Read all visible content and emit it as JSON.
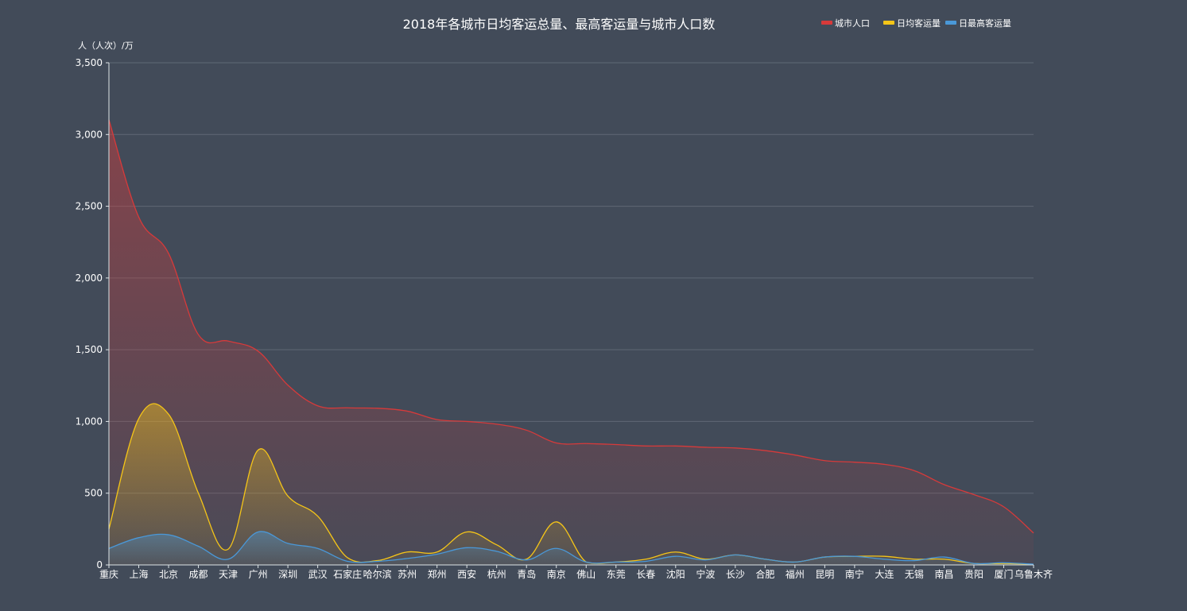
{
  "chart_data": {
    "type": "area",
    "title": "2018年各城市日均客运总量、最高客运量与城市人口数",
    "xlabel": "",
    "ylabel": "人（人次）/万",
    "ylim": [
      0,
      3500
    ],
    "yticks": [
      0,
      500,
      1000,
      1500,
      2000,
      2500,
      3000,
      3500
    ],
    "ytick_labels": [
      "0",
      "500",
      "1,000",
      "1,500",
      "2,000",
      "2,500",
      "3,000",
      "3,500"
    ],
    "grid": true,
    "legend_position": "top-right",
    "categories": [
      "重庆",
      "上海",
      "北京",
      "成都",
      "天津",
      "广州",
      "深圳",
      "武汉",
      "石家庄",
      "哈尔滨",
      "苏州",
      "郑州",
      "西安",
      "杭州",
      "青岛",
      "南京",
      "佛山",
      "东莞",
      "长春",
      "沈阳",
      "宁波",
      "长沙",
      "合肥",
      "福州",
      "昆明",
      "南宁",
      "大连",
      "无锡",
      "南昌",
      "贵阳",
      "厦门",
      "乌鲁木齐"
    ],
    "series": [
      {
        "name": "城市人口",
        "color": "#d73a3a",
        "values": [
          3102,
          2424,
          2171,
          1605,
          1560,
          1490,
          1253,
          1109,
          1095,
          1092,
          1072,
          1013,
          1000,
          981,
          939,
          850,
          846,
          839,
          829,
          829,
          820,
          815,
          797,
          766,
          727,
          716,
          701,
          657,
          560,
          490,
          405,
          222
        ]
      },
      {
        "name": "日均客运量",
        "color": "#f5c518",
        "values": [
          250,
          1020,
          1050,
          500,
          110,
          800,
          480,
          340,
          50,
          30,
          90,
          90,
          230,
          140,
          40,
          300,
          20,
          20,
          40,
          90,
          40,
          70,
          40,
          20,
          55,
          60,
          60,
          40,
          40,
          10,
          10,
          5
        ]
      },
      {
        "name": "日最高客运量",
        "color": "#4a98d8",
        "values": [
          115,
          190,
          210,
          130,
          40,
          230,
          150,
          115,
          25,
          25,
          45,
          75,
          120,
          95,
          35,
          115,
          20,
          20,
          25,
          60,
          35,
          70,
          40,
          20,
          55,
          60,
          40,
          30,
          55,
          10,
          15,
          5
        ]
      }
    ]
  }
}
